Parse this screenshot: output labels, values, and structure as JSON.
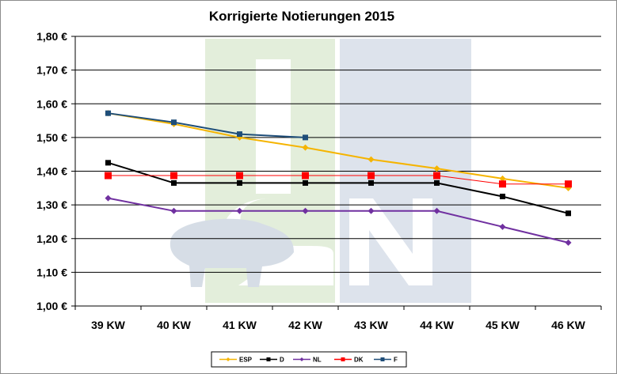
{
  "chart_data": {
    "type": "line",
    "title": "Korrigierte Notierungen 2015",
    "categories": [
      "39 KW",
      "40 KW",
      "41 KW",
      "42 KW",
      "43 KW",
      "44 KW",
      "45 KW",
      "46 KW"
    ],
    "ylim": [
      1.0,
      1.8
    ],
    "yticks": [
      1.0,
      1.1,
      1.2,
      1.3,
      1.4,
      1.5,
      1.6,
      1.7,
      1.8
    ],
    "ytick_labels": [
      "1,00 €",
      "1,10 €",
      "1,20 €",
      "1,30 €",
      "1,40 €",
      "1,50 €",
      "1,60 €",
      "1,70 €",
      "1,80 €"
    ],
    "grid": "horizontal",
    "legend_position": "bottom",
    "series": [
      {
        "name": "ESP",
        "color": "#f5b400",
        "marker": "diamond",
        "values": [
          1.572,
          1.54,
          1.5,
          1.47,
          1.435,
          1.408,
          1.378,
          1.35
        ]
      },
      {
        "name": "D",
        "color": "#000000",
        "marker": "square",
        "values": [
          1.425,
          1.365,
          1.365,
          1.365,
          1.365,
          1.365,
          1.325,
          1.275
        ]
      },
      {
        "name": "NL",
        "color": "#7030a0",
        "marker": "diamond",
        "values": [
          1.32,
          1.282,
          1.282,
          1.282,
          1.282,
          1.282,
          1.235,
          1.188
        ]
      },
      {
        "name": "DK",
        "color": "#ff0000",
        "marker": "square-large",
        "values": [
          1.387,
          1.387,
          1.387,
          1.387,
          1.387,
          1.387,
          1.362,
          1.362
        ]
      },
      {
        "name": "F",
        "color": "#1f4e79",
        "marker": "square",
        "values": [
          1.572,
          1.545,
          1.51,
          1.5,
          null,
          null,
          null,
          null
        ]
      }
    ],
    "watermark": {
      "text": "ISN",
      "colors": {
        "green": "#e3eedb",
        "blue": "#dde3ec",
        "letters": "#ffffff"
      }
    }
  }
}
